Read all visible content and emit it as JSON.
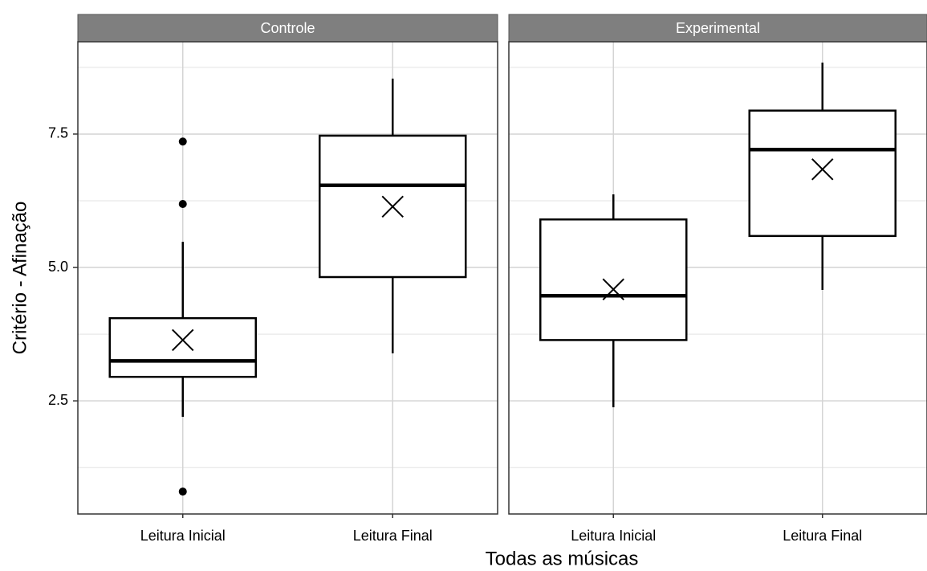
{
  "chart_data": {
    "type": "box",
    "x_label": "Todas as músicas",
    "y_label": "Critério - Afinação",
    "categories": [
      "Leitura Inicial",
      "Leitura Final"
    ],
    "ylim": [
      0.38,
      9.23
    ],
    "yticks": [
      2.5,
      {
        "value": 5,
        "label": "5.0"
      },
      7.5
    ],
    "yminor_ticks": [
      1.25,
      3.75,
      6.25,
      8.75
    ],
    "grid": true,
    "color": "#000000",
    "panels": [
      {
        "name": "Controle",
        "boxes": [
          {
            "min": 2.2,
            "q1": 2.95,
            "median": 3.25,
            "q3": 4.05,
            "max": 5.48,
            "mean": 3.64,
            "outliers": [
              7.36,
              6.19,
              0.8
            ]
          },
          {
            "min": 3.39,
            "q1": 4.82,
            "median": 6.54,
            "q3": 7.47,
            "max": 8.54,
            "mean": 6.14,
            "outliers": []
          }
        ]
      },
      {
        "name": "Experimental",
        "boxes": [
          {
            "min": 2.38,
            "q1": 3.64,
            "median": 4.47,
            "q3": 5.9,
            "max": 6.37,
            "mean": 4.59,
            "outliers": []
          },
          {
            "min": 4.58,
            "q1": 5.59,
            "median": 7.21,
            "q3": 7.94,
            "max": 8.84,
            "mean": 6.84,
            "outliers": []
          }
        ]
      }
    ]
  }
}
